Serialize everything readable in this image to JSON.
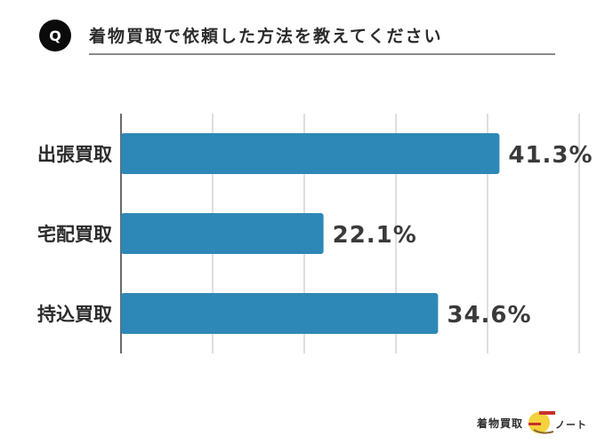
{
  "question": {
    "badge": "Q",
    "title": "着物買取で依頼した方法を教えてください"
  },
  "logo": {
    "text_left": "着物買取",
    "text_right": "ノート"
  },
  "colors": {
    "bar": "#2e88b7",
    "grid": "#d4d4d4",
    "axis": "#3a3a3a"
  },
  "chart_data": {
    "type": "bar",
    "orientation": "horizontal",
    "categories": [
      "出張買取",
      "宅配買取",
      "持込買取"
    ],
    "values": [
      41.3,
      22.1,
      34.6
    ],
    "value_labels": [
      "41.3%",
      "22.1%",
      "34.6%"
    ],
    "xlim": [
      0,
      50
    ],
    "grid": true
  }
}
